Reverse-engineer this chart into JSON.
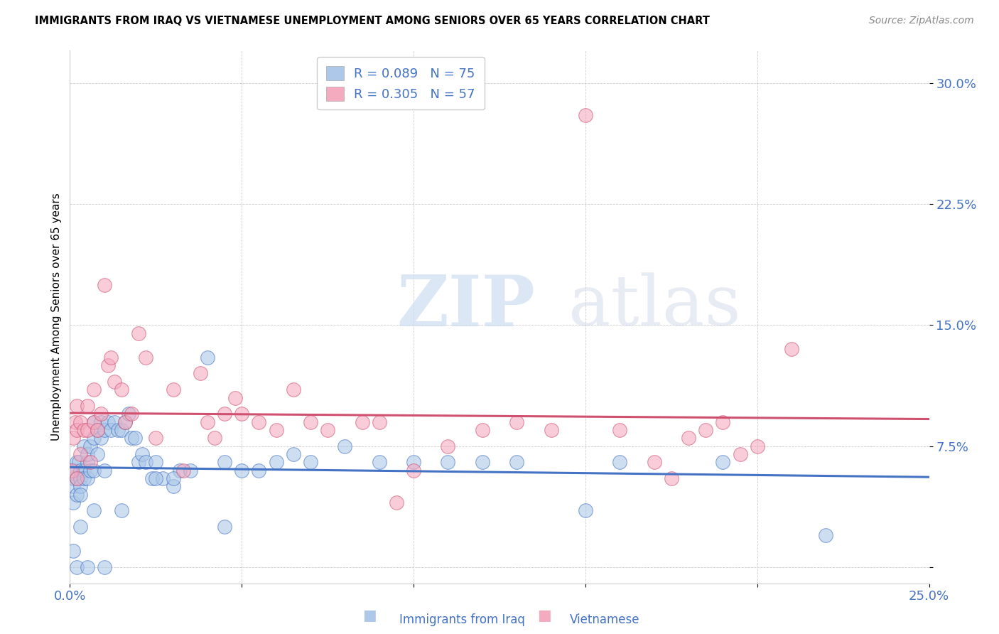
{
  "title": "IMMIGRANTS FROM IRAQ VS VIETNAMESE UNEMPLOYMENT AMONG SENIORS OVER 65 YEARS CORRELATION CHART",
  "source": "Source: ZipAtlas.com",
  "ylabel": "Unemployment Among Seniors over 65 years",
  "xlim": [
    0.0,
    0.25
  ],
  "ylim": [
    -0.01,
    0.32
  ],
  "xticks": [
    0.0,
    0.05,
    0.1,
    0.15,
    0.2,
    0.25
  ],
  "xticklabels": [
    "0.0%",
    "",
    "",
    "",
    "",
    "25.0%"
  ],
  "yticks": [
    0.0,
    0.075,
    0.15,
    0.225,
    0.3
  ],
  "yticklabels": [
    "",
    "7.5%",
    "15.0%",
    "22.5%",
    "30.0%"
  ],
  "legend_labels": [
    "Immigrants from Iraq",
    "Vietnamese"
  ],
  "iraq_R": "0.089",
  "iraq_N": "75",
  "viet_R": "0.305",
  "viet_N": "57",
  "iraq_color": "#adc8e8",
  "viet_color": "#f4aabf",
  "iraq_line_color": "#4472c4",
  "viet_line_color": "#d05070",
  "watermark_zip": "ZIP",
  "watermark_atlas": "atlas",
  "iraq_x": [
    0.0005,
    0.001,
    0.001,
    0.001,
    0.0015,
    0.002,
    0.002,
    0.002,
    0.0025,
    0.003,
    0.003,
    0.003,
    0.003,
    0.004,
    0.004,
    0.004,
    0.005,
    0.005,
    0.005,
    0.006,
    0.006,
    0.007,
    0.007,
    0.007,
    0.008,
    0.008,
    0.009,
    0.009,
    0.01,
    0.01,
    0.011,
    0.012,
    0.013,
    0.014,
    0.015,
    0.016,
    0.017,
    0.018,
    0.019,
    0.02,
    0.021,
    0.022,
    0.024,
    0.025,
    0.027,
    0.03,
    0.032,
    0.035,
    0.04,
    0.045,
    0.05,
    0.055,
    0.06,
    0.065,
    0.07,
    0.08,
    0.09,
    0.1,
    0.11,
    0.12,
    0.13,
    0.15,
    0.16,
    0.19,
    0.22,
    0.001,
    0.002,
    0.003,
    0.005,
    0.007,
    0.01,
    0.015,
    0.025,
    0.03,
    0.045
  ],
  "iraq_y": [
    0.06,
    0.055,
    0.05,
    0.04,
    0.06,
    0.065,
    0.055,
    0.045,
    0.065,
    0.06,
    0.055,
    0.05,
    0.045,
    0.06,
    0.075,
    0.055,
    0.065,
    0.07,
    0.055,
    0.075,
    0.06,
    0.08,
    0.09,
    0.06,
    0.085,
    0.07,
    0.08,
    0.09,
    0.085,
    0.06,
    0.09,
    0.085,
    0.09,
    0.085,
    0.085,
    0.09,
    0.095,
    0.08,
    0.08,
    0.065,
    0.07,
    0.065,
    0.055,
    0.065,
    0.055,
    0.05,
    0.06,
    0.06,
    0.13,
    0.065,
    0.06,
    0.06,
    0.065,
    0.07,
    0.065,
    0.075,
    0.065,
    0.065,
    0.065,
    0.065,
    0.065,
    0.035,
    0.065,
    0.065,
    0.02,
    0.01,
    0.0,
    0.025,
    0.0,
    0.035,
    0.0,
    0.035,
    0.055,
    0.055,
    0.025
  ],
  "viet_x": [
    0.0005,
    0.001,
    0.0015,
    0.002,
    0.002,
    0.002,
    0.003,
    0.003,
    0.004,
    0.005,
    0.005,
    0.006,
    0.007,
    0.007,
    0.008,
    0.009,
    0.01,
    0.011,
    0.012,
    0.013,
    0.015,
    0.016,
    0.018,
    0.02,
    0.022,
    0.025,
    0.03,
    0.033,
    0.038,
    0.04,
    0.042,
    0.045,
    0.048,
    0.05,
    0.055,
    0.06,
    0.065,
    0.07,
    0.075,
    0.085,
    0.09,
    0.095,
    0.1,
    0.11,
    0.12,
    0.13,
    0.14,
    0.15,
    0.16,
    0.17,
    0.175,
    0.18,
    0.185,
    0.19,
    0.195,
    0.2,
    0.21
  ],
  "viet_y": [
    0.06,
    0.08,
    0.09,
    0.1,
    0.085,
    0.055,
    0.07,
    0.09,
    0.085,
    0.085,
    0.1,
    0.065,
    0.09,
    0.11,
    0.085,
    0.095,
    0.175,
    0.125,
    0.13,
    0.115,
    0.11,
    0.09,
    0.095,
    0.145,
    0.13,
    0.08,
    0.11,
    0.06,
    0.12,
    0.09,
    0.08,
    0.095,
    0.105,
    0.095,
    0.09,
    0.085,
    0.11,
    0.09,
    0.085,
    0.09,
    0.09,
    0.04,
    0.06,
    0.075,
    0.085,
    0.09,
    0.085,
    0.28,
    0.085,
    0.065,
    0.055,
    0.08,
    0.085,
    0.09,
    0.07,
    0.075,
    0.135
  ]
}
